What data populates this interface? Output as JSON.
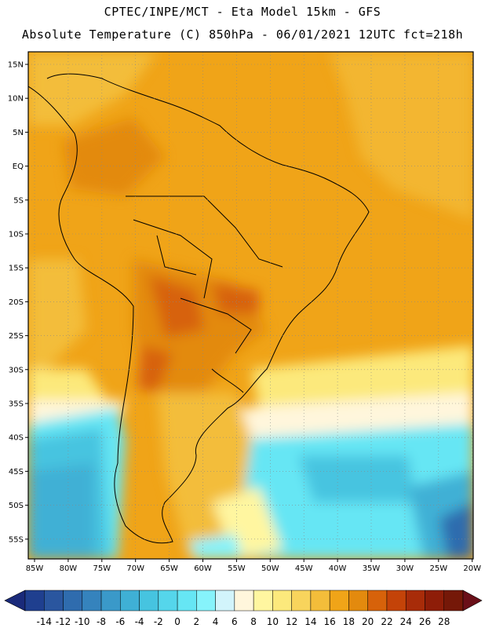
{
  "header": {
    "line1": "CPTEC/INPE/MCT -  Eta Model 15km - GFS",
    "line2": "Absolute Temperature (C) 850hPa - 06/01/2021 12UTC fct=218h"
  },
  "map": {
    "lat_labels": [
      "15N",
      "10N",
      "5N",
      "EQ",
      "5S",
      "10S",
      "15S",
      "20S",
      "25S",
      "30S",
      "35S",
      "40S",
      "45S",
      "50S",
      "55S"
    ],
    "lon_labels": [
      "85W",
      "80W",
      "75W",
      "70W",
      "65W",
      "60W",
      "55W",
      "50W",
      "45W",
      "40W",
      "35W",
      "30W",
      "25W",
      "20W"
    ],
    "background_color": "#f2a31c"
  },
  "colorbar": {
    "labels": [
      "-14",
      "-12",
      "-10",
      "-8",
      "-6",
      "-4",
      "-2",
      "0",
      "2",
      "4",
      "6",
      "8",
      "10",
      "12",
      "14",
      "16",
      "18",
      "20",
      "22",
      "24",
      "26",
      "28"
    ],
    "colors": [
      "#1f3f8f",
      "#2a569f",
      "#2f6cae",
      "#3583bd",
      "#3a99c9",
      "#3fb0d5",
      "#46c4e0",
      "#55d6eb",
      "#66e6f4",
      "#86f3fb",
      "#d2f4fb",
      "#fff6dc",
      "#fff6a0",
      "#fce97c",
      "#f8d45c",
      "#f3bd3a",
      "#f0a418",
      "#e38a0e",
      "#d7620a",
      "#c44308",
      "#a82c09",
      "#8e1d08",
      "#751808"
    ],
    "arrow_left_color": "#1a2a7a",
    "arrow_right_color": "#6a0f18"
  }
}
